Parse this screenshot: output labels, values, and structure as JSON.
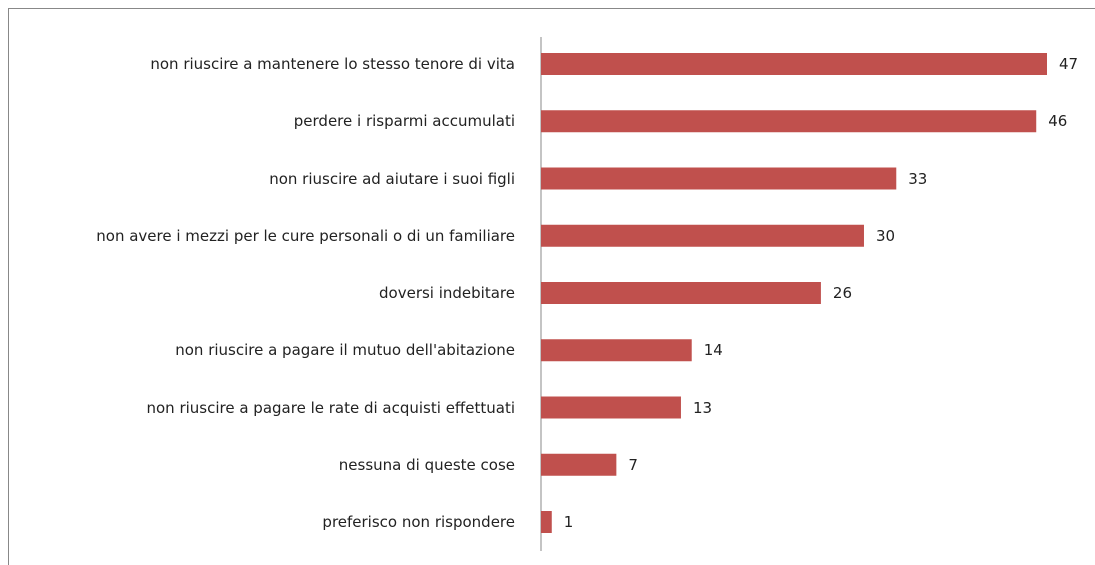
{
  "chart_data": {
    "type": "bar",
    "orientation": "horizontal",
    "categories": [
      "non riuscire a mantenere lo stesso tenore di vita",
      "perdere i risparmi accumulati",
      "non riuscire ad aiutare i suoi figli",
      "non avere i mezzi per le cure personali o di un familiare",
      "doversi indebitare",
      "non riuscire a pagare il mutuo dell'abitazione",
      "non riuscire a pagare le rate di acquisti effettuati",
      "nessuna di queste cose",
      "preferisco non rispondere"
    ],
    "values": [
      47,
      46,
      33,
      30,
      26,
      14,
      13,
      7,
      1
    ],
    "color": "#c0504d"
  }
}
